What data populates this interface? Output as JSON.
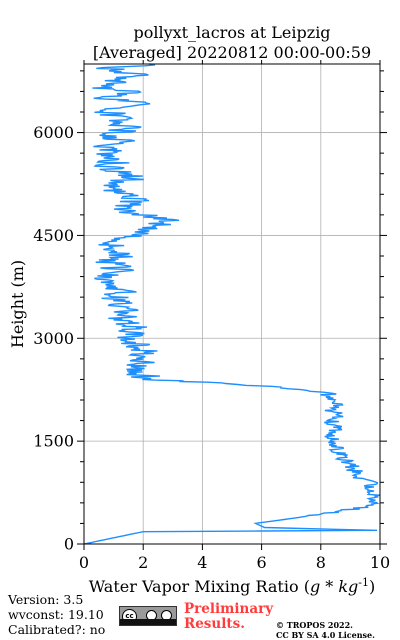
{
  "chart_data": {
    "type": "line",
    "title": [
      "pollyxt_lacros at Leipzig",
      "[Averaged] 20220812 00:00-00:59"
    ],
    "xlabel": "Water Vapor Mixing Ratio ($g*kg^{-1}$)",
    "ylabel": "Height (m)",
    "xlim": [
      0,
      10
    ],
    "ylim": [
      0,
      7000
    ],
    "xticks": [
      0,
      2,
      4,
      6,
      8,
      10
    ],
    "yticks": [
      0,
      1500,
      3000,
      4500,
      6000
    ],
    "grid": true,
    "color": "#1f8fff",
    "series": [
      {
        "x": [
          0.0,
          2.0,
          9.9,
          6.1,
          5.8,
          8.3,
          9.7,
          9.9,
          9.6,
          9.7,
          9.3,
          9.1,
          8.8,
          8.6,
          8.5,
          8.4,
          8.6,
          8.3,
          8.7,
          8.3,
          8.5,
          8.1,
          8.3,
          7.4,
          6.2,
          4.8,
          3.6,
          2.3,
          2.0,
          1.6,
          2.0,
          2.1,
          1.9,
          1.4,
          1.7,
          1.2,
          1.5,
          1.0,
          1.3,
          0.8,
          1.2,
          0.9,
          1.4,
          0.8,
          1.3,
          1.8,
          2.9,
          1.5,
          1.7,
          0.9,
          1.6,
          0.9,
          1.1,
          0.7,
          1.2,
          0.7,
          1.6,
          0.9,
          1.3,
          0.6,
          2.6,
          0.8,
          1.7,
          0.5,
          1.4,
          0.8,
          1.9,
          0.6,
          1.2,
          2.2
        ],
        "y": [
          0,
          180,
          200,
          240,
          300,
          450,
          560,
          650,
          760,
          880,
          980,
          1100,
          1240,
          1360,
          1480,
          1580,
          1680,
          1760,
          1860,
          1960,
          2040,
          2140,
          2200,
          2240,
          2300,
          2340,
          2370,
          2400,
          2460,
          2560,
          2660,
          2780,
          2900,
          3000,
          3140,
          3280,
          3420,
          3560,
          3700,
          3840,
          3980,
          4120,
          4260,
          4340,
          4420,
          4540,
          4720,
          4860,
          5020,
          5180,
          5340,
          5500,
          5640,
          5760,
          5880,
          5960,
          6060,
          6140,
          6220,
          6320,
          6420,
          6500,
          6580,
          6660,
          6720,
          6780,
          6840,
          6900,
          6960,
          7000
        ]
      }
    ]
  },
  "footer": {
    "version": "Version: 3.5",
    "wvconst": "wvconst:  19.10",
    "calibrated": "Calibrated?: no",
    "prelim_line1": "Preliminary",
    "prelim_line2": "Results.",
    "copyright_line1": "© TROPOS 2022.",
    "copyright_line2": "CC BY SA 4.0 License.",
    "license_badge_text": "cc"
  }
}
